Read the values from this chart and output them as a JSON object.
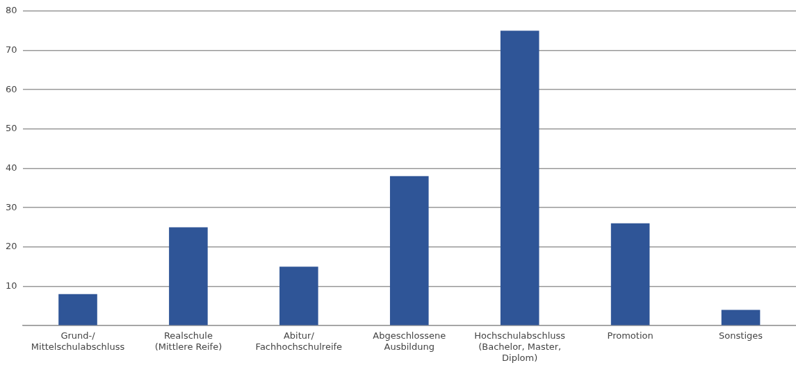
{
  "chart_data": {
    "type": "bar",
    "categories": [
      "Grund-/\nMittelschulabschluss",
      "Realschule\n(Mittlere Reife)",
      "Abitur/\nFachhochschulreife",
      "Abgeschlossene\nAusbildung",
      "Hochschulabschluss\n(Bachelor, Master,\nDiplom)",
      "Promotion",
      "Sonstiges"
    ],
    "values": [
      8,
      25,
      15,
      38,
      75,
      26,
      4
    ],
    "color": "#2f5597",
    "ylim": [
      0,
      80
    ],
    "yticks": [
      {
        "value": 0,
        "label": null
      },
      10,
      20,
      30,
      40,
      50,
      60,
      70,
      80
    ],
    "grid": "y",
    "legend": false
  }
}
